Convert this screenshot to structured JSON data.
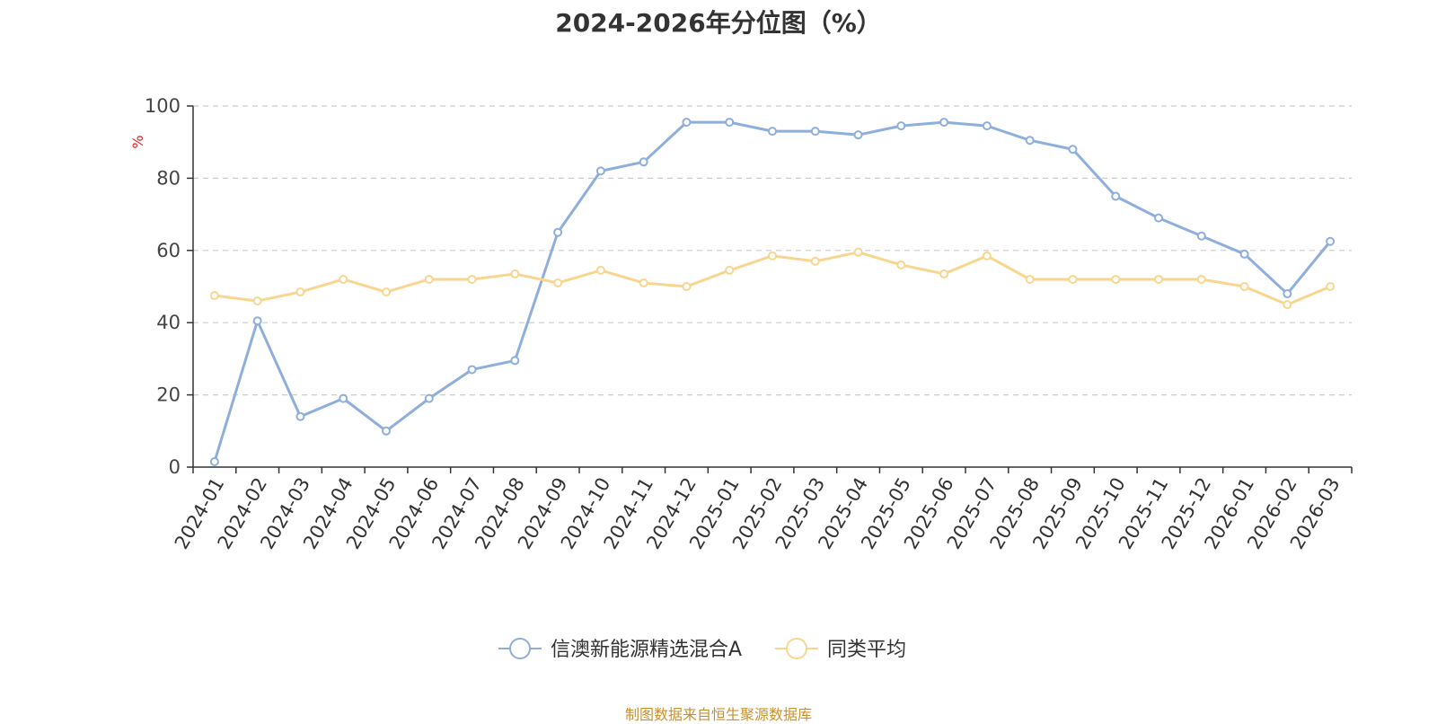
{
  "title": "2024-2026年分位图（%）",
  "source": "制图数据来自恒生聚源数据库",
  "chart_data": {
    "type": "line",
    "title": "2024-2026年分位图（%）",
    "ylabel": "%",
    "xlabel": "",
    "ylim": [
      0,
      100
    ],
    "yticks": [
      0,
      20,
      40,
      60,
      80,
      100
    ],
    "grid": true,
    "legend_position": "bottom",
    "x": [
      "2024-01",
      "2024-02",
      "2024-03",
      "2024-04",
      "2024-05",
      "2024-06",
      "2024-07",
      "2024-08",
      "2024-09",
      "2024-10",
      "2024-11",
      "2024-12",
      "2025-01",
      "2025-02",
      "2025-03",
      "2025-04",
      "2025-05",
      "2025-06",
      "2025-07",
      "2025-08",
      "2025-09",
      "2025-10",
      "2025-11",
      "2025-12",
      "2026-01",
      "2026-02",
      "2026-03"
    ],
    "series": [
      {
        "name": "信澳新能源精选混合A",
        "color": "#8eaedb",
        "values": [
          1.5,
          40.5,
          14,
          19,
          10,
          19,
          27,
          29.5,
          65,
          82,
          84.5,
          95.5,
          95.5,
          93,
          93,
          92,
          94.5,
          95.5,
          94.5,
          90.5,
          88,
          75,
          69,
          64,
          59,
          48,
          62.5
        ]
      },
      {
        "name": "同类平均",
        "color": "#f9d68f",
        "values": [
          47.5,
          46,
          48.5,
          52,
          48.5,
          52,
          52,
          53.5,
          51,
          54.5,
          51,
          50,
          54.5,
          58.5,
          57,
          59.5,
          56,
          53.5,
          58.5,
          52,
          52,
          52,
          52,
          52,
          50,
          45,
          50
        ]
      }
    ]
  }
}
